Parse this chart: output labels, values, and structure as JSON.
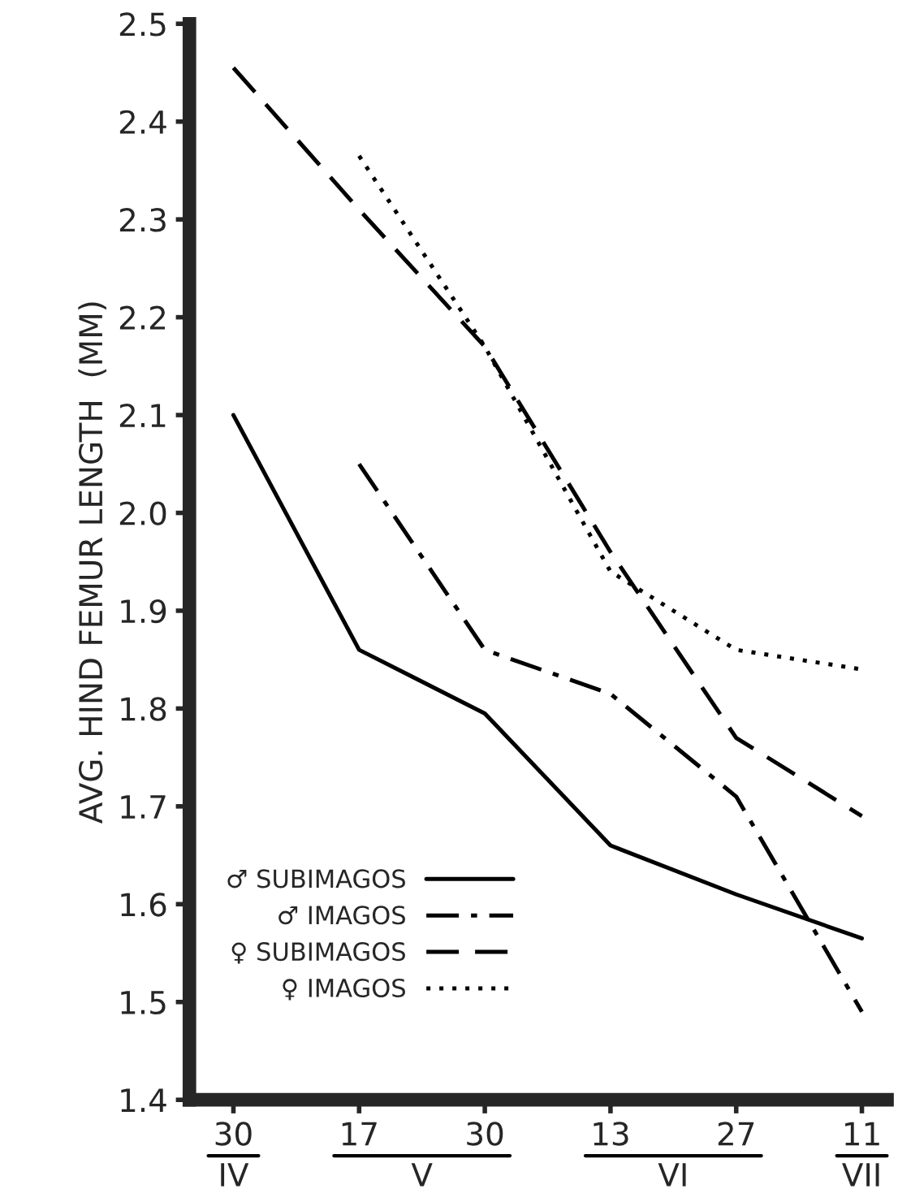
{
  "chart_data": {
    "type": "line",
    "ylabel": "AVG. HIND FEMUR LENGTH  (MM)",
    "categories": [
      "30",
      "17",
      "30",
      "13",
      "27",
      "11"
    ],
    "annotations": [
      "IV",
      "V",
      "VI",
      "VII"
    ],
    "ylim": [
      1.4,
      2.5
    ],
    "yticks": [
      1.4,
      1.5,
      1.6,
      1.7,
      1.8,
      1.9,
      {
        "value": 2.0,
        "label": "2.0"
      },
      2.1,
      2.2,
      2.3,
      2.4,
      2.5
    ],
    "grid": false,
    "legend": "bottom left",
    "marker": "none",
    "series": [
      {
        "name": "♂ SUBIMAGOS",
        "color": "#000000",
        "line_style": "solid",
        "values": [
          2.1,
          1.86,
          1.795,
          1.66,
          1.61,
          1.565
        ]
      },
      {
        "name": "♂ IMAGOS",
        "color": "#000000",
        "line_style": "dashdot",
        "values": [
          null,
          2.05,
          1.86,
          1.815,
          1.71,
          1.49
        ]
      },
      {
        "name": "♀ SUBIMAGOS",
        "color": "#000000",
        "line_style": "dashed",
        "values": [
          2.455,
          2.31,
          2.17,
          1.96,
          1.77,
          1.69
        ]
      },
      {
        "name": "♀ IMAGOS",
        "color": "#000000",
        "line_style": "dotted",
        "values": [
          null,
          2.365,
          2.17,
          1.94,
          1.86,
          1.84
        ]
      }
    ]
  }
}
